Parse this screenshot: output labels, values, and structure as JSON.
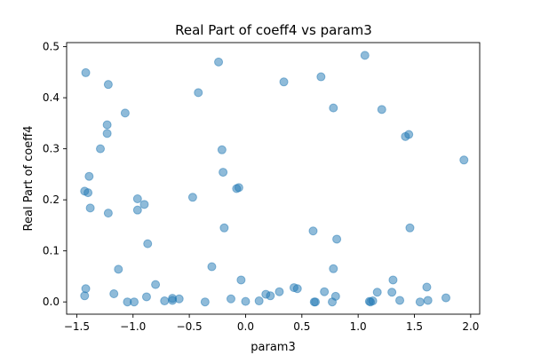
{
  "colors": {
    "marker": "#1f77b4",
    "axis": "#000000",
    "background": "#ffffff"
  },
  "chart_data": {
    "type": "scatter",
    "title": "Real Part of coeff4 vs param3",
    "xlabel": "param3",
    "ylabel": "Real Part of coeff4",
    "xlim": [
      -1.59,
      2.08
    ],
    "ylim": [
      -0.024,
      0.508
    ],
    "xticks": [
      -1.5,
      -1.0,
      -0.5,
      0.0,
      0.5,
      1.0,
      1.5,
      2.0
    ],
    "xtick_labels": [
      "−1.5",
      "−1.0",
      "−0.5",
      "0.0",
      "0.5",
      "1.0",
      "1.5",
      "2.0"
    ],
    "yticks": [
      0.0,
      0.1,
      0.2,
      0.3,
      0.4,
      0.5
    ],
    "ytick_labels": [
      "0.0",
      "0.1",
      "0.2",
      "0.3",
      "0.4",
      "0.5"
    ],
    "grid": false,
    "marker_alpha": 0.5,
    "points": [
      {
        "x": -1.42,
        "y": 0.449
      },
      {
        "x": -1.22,
        "y": 0.426
      },
      {
        "x": -1.07,
        "y": 0.37
      },
      {
        "x": -1.23,
        "y": 0.347
      },
      {
        "x": -1.23,
        "y": 0.33
      },
      {
        "x": -1.29,
        "y": 0.3
      },
      {
        "x": -1.39,
        "y": 0.246
      },
      {
        "x": -1.43,
        "y": 0.217
      },
      {
        "x": -1.4,
        "y": 0.214
      },
      {
        "x": -1.38,
        "y": 0.184
      },
      {
        "x": -1.22,
        "y": 0.174
      },
      {
        "x": -0.96,
        "y": 0.202
      },
      {
        "x": -0.9,
        "y": 0.191
      },
      {
        "x": -0.96,
        "y": 0.18
      },
      {
        "x": -0.87,
        "y": 0.114
      },
      {
        "x": -1.13,
        "y": 0.064
      },
      {
        "x": -0.8,
        "y": 0.034
      },
      {
        "x": -1.42,
        "y": 0.026
      },
      {
        "x": -1.17,
        "y": 0.016
      },
      {
        "x": -1.43,
        "y": 0.012
      },
      {
        "x": -0.88,
        "y": 0.01
      },
      {
        "x": -1.05,
        "y": 0.0
      },
      {
        "x": -0.99,
        "y": 0.0
      },
      {
        "x": -0.72,
        "y": 0.002
      },
      {
        "x": -0.65,
        "y": 0.007
      },
      {
        "x": -0.65,
        "y": 0.003
      },
      {
        "x": -0.59,
        "y": 0.006
      },
      {
        "x": -0.24,
        "y": 0.47
      },
      {
        "x": -0.42,
        "y": 0.41
      },
      {
        "x": -0.21,
        "y": 0.298
      },
      {
        "x": -0.2,
        "y": 0.254
      },
      {
        "x": -0.08,
        "y": 0.222
      },
      {
        "x": -0.06,
        "y": 0.224
      },
      {
        "x": -0.47,
        "y": 0.205
      },
      {
        "x": -0.19,
        "y": 0.145
      },
      {
        "x": -0.3,
        "y": 0.069
      },
      {
        "x": -0.04,
        "y": 0.043
      },
      {
        "x": -0.36,
        "y": 0.0
      },
      {
        "x": -0.13,
        "y": 0.006
      },
      {
        "x": 0.0,
        "y": 0.001
      },
      {
        "x": 0.12,
        "y": 0.002
      },
      {
        "x": 0.18,
        "y": 0.015
      },
      {
        "x": 0.22,
        "y": 0.012
      },
      {
        "x": 0.3,
        "y": 0.02
      },
      {
        "x": 0.34,
        "y": 0.431
      },
      {
        "x": 0.43,
        "y": 0.028
      },
      {
        "x": 0.46,
        "y": 0.026
      },
      {
        "x": 0.6,
        "y": 0.139
      },
      {
        "x": 0.61,
        "y": 0.0
      },
      {
        "x": 0.62,
        "y": 0.0
      },
      {
        "x": 0.67,
        "y": 0.441
      },
      {
        "x": 0.7,
        "y": 0.02
      },
      {
        "x": 0.78,
        "y": 0.38
      },
      {
        "x": 0.81,
        "y": 0.123
      },
      {
        "x": 0.78,
        "y": 0.065
      },
      {
        "x": 0.8,
        "y": 0.011
      },
      {
        "x": 0.77,
        "y": 0.0
      },
      {
        "x": 1.06,
        "y": 0.483
      },
      {
        "x": 1.21,
        "y": 0.377
      },
      {
        "x": 1.42,
        "y": 0.324
      },
      {
        "x": 1.45,
        "y": 0.328
      },
      {
        "x": 1.46,
        "y": 0.145
      },
      {
        "x": 1.31,
        "y": 0.043
      },
      {
        "x": 1.17,
        "y": 0.019
      },
      {
        "x": 1.3,
        "y": 0.019
      },
      {
        "x": 1.37,
        "y": 0.003
      },
      {
        "x": 1.1,
        "y": 0.001
      },
      {
        "x": 1.11,
        "y": 0.0
      },
      {
        "x": 1.13,
        "y": 0.002
      },
      {
        "x": 1.55,
        "y": 0.0
      },
      {
        "x": 1.61,
        "y": 0.029
      },
      {
        "x": 1.62,
        "y": 0.003
      },
      {
        "x": 1.78,
        "y": 0.008
      },
      {
        "x": 1.94,
        "y": 0.278
      }
    ]
  }
}
